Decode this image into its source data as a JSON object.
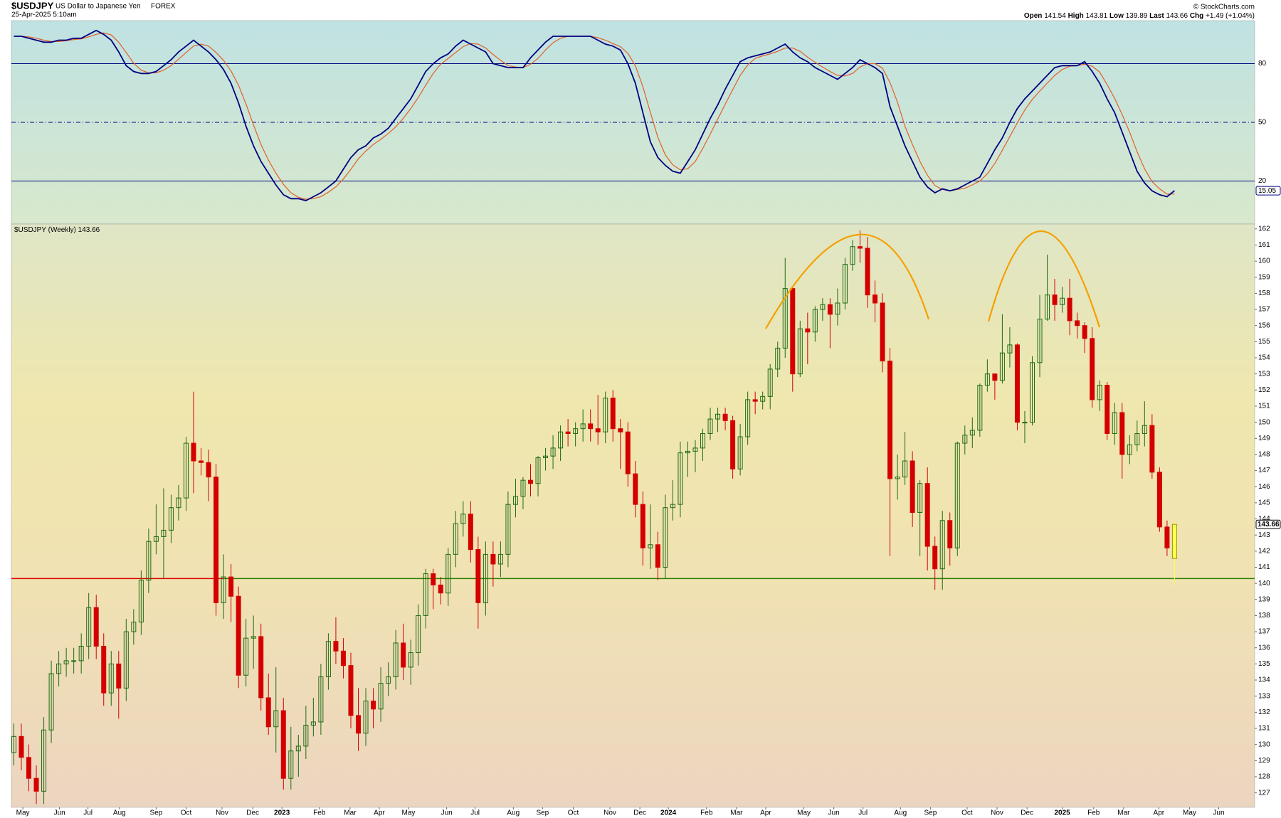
{
  "header": {
    "symbol": "$USDJPY",
    "name": "US Dollar to Japanese Yen",
    "exchange": "FOREX",
    "date": "25-Apr-2025 5:10am",
    "open_label": "Open",
    "high_label": "High",
    "low_label": "Low",
    "last_label": "Last",
    "chg_label": "Chg",
    "chg": "+1.49 (+1.04%)",
    "copyright": "© StockCharts.com"
  },
  "chart_data": [
    {
      "type": "line",
      "ylim": [
        -2,
        102
      ],
      "yticks": [
        20,
        50,
        80
      ],
      "xlim": [
        -0.33,
        165.7
      ],
      "series": [
        {
          "color": "#000080",
          "values": [
            94,
            94,
            93,
            92,
            91,
            91,
            92,
            92,
            93,
            93,
            95,
            97,
            95,
            92,
            86,
            79,
            76,
            75,
            75,
            76,
            79,
            82,
            86,
            89,
            92,
            89,
            86,
            82,
            77,
            70,
            60,
            48,
            38,
            30,
            24,
            18,
            13,
            11,
            11,
            10,
            12,
            14,
            17,
            20,
            26,
            32,
            36,
            38,
            42,
            44,
            47,
            52,
            57,
            62,
            69,
            76,
            80,
            83,
            85,
            89,
            92,
            90,
            88,
            86,
            80,
            79,
            78,
            78,
            78,
            83,
            87,
            91,
            94,
            94,
            94,
            94,
            94,
            94,
            92,
            90,
            89,
            87,
            80,
            70,
            55,
            40,
            32,
            28,
            25,
            24,
            30,
            36,
            44,
            52,
            59,
            67,
            74,
            81,
            83,
            84,
            85,
            86,
            88,
            90,
            86,
            83,
            81,
            78,
            76,
            74,
            72,
            75,
            78,
            82,
            80,
            78,
            75,
            58,
            48,
            38,
            30,
            22,
            17,
            14,
            16,
            15,
            16,
            18,
            20,
            22,
            29,
            36,
            42,
            50,
            57,
            62,
            66,
            70,
            74,
            78,
            79,
            79,
            79,
            81,
            76,
            70,
            62,
            55,
            45,
            35,
            25,
            19,
            15,
            13,
            12,
            15.05
          ]
        },
        {
          "color": "#e0602a",
          "values": [
            94,
            94,
            93.7,
            93,
            92,
            91.3,
            91.3,
            91.7,
            92.3,
            92.7,
            93.7,
            95,
            95.7,
            94.7,
            91,
            85.7,
            80.3,
            76.7,
            75.3,
            75.3,
            76.7,
            79,
            82.3,
            85.7,
            89,
            90,
            89,
            85.7,
            81.7,
            76.3,
            69,
            59.3,
            48.7,
            38.7,
            30.7,
            24,
            18.3,
            14,
            11.7,
            10.7,
            11,
            12,
            14.3,
            17,
            21,
            26,
            31.3,
            35.3,
            38.7,
            41.3,
            44.3,
            47.7,
            52,
            57,
            62.7,
            69,
            75,
            79.7,
            82.7,
            85.7,
            88.7,
            90.3,
            90,
            88,
            84.7,
            81.7,
            79,
            78.3,
            78,
            79.7,
            82.7,
            87,
            90.7,
            93,
            94,
            94,
            94,
            94,
            93.3,
            92,
            90.3,
            88.7,
            85.3,
            79,
            68.3,
            55,
            42.3,
            33.3,
            28.3,
            25.7,
            26.3,
            30,
            36.7,
            44,
            51.7,
            59.3,
            66.7,
            74,
            79.3,
            82.7,
            84,
            85,
            86.3,
            88,
            88,
            86.3,
            83.3,
            80.7,
            78.3,
            76,
            74,
            73.7,
            75,
            78.3,
            80,
            80,
            77.7,
            70.3,
            60.3,
            48,
            38.7,
            30,
            23,
            17.7,
            15.7,
            15,
            15.7,
            16.3,
            18,
            20,
            23.7,
            29,
            35.7,
            42.7,
            49.7,
            56.3,
            61.7,
            66,
            70,
            74,
            77,
            78.7,
            79,
            79.7,
            78.7,
            75.7,
            69.3,
            62.3,
            54,
            45,
            35,
            26.3,
            19.7,
            16,
            13.3,
            13.35
          ]
        }
      ]
    },
    {
      "type": "candlestick",
      "label": "$USDJPY (Weekly)",
      "ylim": [
        126.1,
        162.3
      ],
      "xlim": [
        -0.33,
        165.7
      ],
      "yticks": [
        127,
        128,
        129,
        130,
        131,
        132,
        133,
        134,
        135,
        136,
        137,
        138,
        139,
        140,
        141,
        142,
        143,
        144,
        145,
        146,
        147,
        148,
        149,
        150,
        151,
        152,
        153,
        154,
        155,
        156,
        157,
        158,
        159,
        160,
        161,
        162
      ],
      "xticks": [
        {
          "value": 1.2,
          "label": "May"
        },
        {
          "value": 6.1,
          "label": "Jun"
        },
        {
          "value": 9.9,
          "label": "Jul"
        },
        {
          "value": 14.1,
          "label": "Aug"
        },
        {
          "value": 19.0,
          "label": "Sep"
        },
        {
          "value": 23.0,
          "label": "Oct"
        },
        {
          "value": 27.8,
          "label": "Nov"
        },
        {
          "value": 31.9,
          "label": "Dec"
        },
        {
          "value": 35.8,
          "label": "2023"
        },
        {
          "value": 40.8,
          "label": "Feb"
        },
        {
          "value": 44.9,
          "label": "Mar"
        },
        {
          "value": 48.8,
          "label": "Apr"
        },
        {
          "value": 52.7,
          "label": "May"
        },
        {
          "value": 57.8,
          "label": "Jun"
        },
        {
          "value": 61.6,
          "label": "Jul"
        },
        {
          "value": 66.7,
          "label": "Aug"
        },
        {
          "value": 70.6,
          "label": "Sep"
        },
        {
          "value": 74.7,
          "label": "Oct"
        },
        {
          "value": 79.6,
          "label": "Nov"
        },
        {
          "value": 83.6,
          "label": "Dec"
        },
        {
          "value": 87.4,
          "label": "2024"
        },
        {
          "value": 92.5,
          "label": "Feb"
        },
        {
          "value": 96.5,
          "label": "Mar"
        },
        {
          "value": 100.4,
          "label": "Apr"
        },
        {
          "value": 105.5,
          "label": "May"
        },
        {
          "value": 109.5,
          "label": "Jun"
        },
        {
          "value": 113.4,
          "label": "Jul"
        },
        {
          "value": 118.4,
          "label": "Aug"
        },
        {
          "value": 122.4,
          "label": "Sep"
        },
        {
          "value": 127.3,
          "label": "Oct"
        },
        {
          "value": 131.3,
          "label": "Nov"
        },
        {
          "value": 135.3,
          "label": "Dec"
        },
        {
          "value": 140.0,
          "label": "2025"
        },
        {
          "value": 144.2,
          "label": "Feb"
        },
        {
          "value": 148.2,
          "label": "Mar"
        },
        {
          "value": 152.9,
          "label": "Apr"
        },
        {
          "value": 157.0,
          "label": "May"
        },
        {
          "value": 160.9,
          "label": "Jun"
        }
      ],
      "up_color": "#1f6b12",
      "down_color": "#d40000",
      "last_color": "#ffff55",
      "level": 140.3,
      "level_colors": [
        "#dd0000",
        "#2a8000"
      ],
      "open": [
        129.5,
        130.5,
        129.2,
        127.9,
        127.1,
        130.9,
        134.4,
        135.0,
        135.2,
        135.2,
        136.1,
        138.5,
        136.1,
        133.2,
        135.0,
        133.5,
        137.0,
        137.6,
        140.2,
        142.6,
        142.9,
        143.3,
        144.7,
        145.3,
        148.7,
        147.6,
        147.5,
        146.6,
        138.8,
        140.4,
        139.2,
        134.3,
        136.6,
        136.7,
        132.9,
        131.1,
        132.1,
        127.9,
        129.6,
        129.9,
        131.2,
        131.4,
        134.2,
        136.4,
        135.8,
        134.9,
        131.8,
        130.7,
        132.7,
        132.2,
        133.8,
        134.2,
        136.3,
        134.8,
        135.7,
        138.0,
        140.6,
        139.9,
        139.4,
        141.8,
        143.7,
        144.3,
        142.1,
        138.8,
        141.8,
        141.2,
        141.8,
        144.9,
        145.4,
        146.4,
        146.2,
        147.8,
        147.9,
        148.4,
        149.4,
        149.3,
        149.6,
        149.9,
        149.6,
        149.4,
        151.5,
        149.6,
        149.4,
        146.8,
        144.9,
        142.2,
        142.4,
        141.0,
        144.7,
        144.9,
        148.1,
        148.2,
        148.4,
        149.3,
        150.2,
        150.5,
        150.1,
        147.1,
        149.1,
        151.4,
        151.3,
        151.6,
        153.3,
        154.6,
        158.3,
        153.0,
        155.8,
        155.6,
        157.0,
        157.3,
        156.7,
        157.4,
        159.8,
        160.9,
        160.8,
        157.9,
        157.4,
        153.8,
        146.5,
        146.6,
        147.6,
        144.4,
        146.2,
        142.3,
        140.9,
        143.9,
        142.2,
        148.7,
        149.2,
        149.5,
        152.3,
        153.0,
        152.6,
        154.3,
        154.8,
        150.0,
        150.0,
        153.7,
        156.4,
        157.9,
        157.3,
        157.7,
        156.3,
        156.0,
        155.2,
        151.4,
        152.3,
        149.3,
        150.6,
        148.0,
        148.6,
        149.3,
        149.8,
        146.9,
        143.5,
        141.54
      ],
      "high": [
        131.3,
        131.3,
        130.0,
        128.7,
        131.7,
        135.2,
        135.8,
        136.0,
        136.0,
        136.9,
        139.4,
        139.3,
        136.9,
        135.8,
        135.8,
        137.8,
        138.4,
        140.8,
        143.4,
        144.9,
        145.9,
        145.5,
        146.1,
        149.1,
        151.9,
        148.4,
        148.3,
        147.4,
        141.8,
        141.2,
        139.8,
        137.8,
        138.0,
        137.5,
        134.4,
        134.8,
        132.9,
        131.1,
        130.6,
        132.4,
        132.9,
        135.0,
        136.9,
        137.9,
        136.6,
        135.7,
        133.5,
        133.5,
        133.5,
        134.8,
        135.1,
        137.1,
        137.5,
        136.5,
        138.7,
        140.9,
        140.9,
        140.4,
        142.2,
        144.5,
        145.1,
        145.1,
        142.9,
        142.6,
        142.6,
        142.6,
        145.7,
        146.5,
        146.6,
        147.4,
        147.9,
        148.4,
        149.2,
        149.8,
        150.2,
        150.0,
        150.8,
        150.8,
        151.7,
        151.9,
        152.0,
        150.2,
        150.0,
        147.6,
        145.7,
        144.9,
        143.2,
        145.5,
        146.4,
        148.8,
        148.8,
        148.9,
        149.6,
        150.9,
        150.9,
        150.9,
        150.4,
        149.9,
        151.9,
        151.9,
        151.9,
        153.6,
        155.0,
        160.2,
        158.4,
        156.3,
        156.8,
        157.2,
        157.7,
        157.7,
        158.3,
        160.2,
        161.3,
        161.9,
        161.5,
        158.8,
        158.0,
        154.6,
        148.0,
        149.4,
        148.2,
        146.4,
        147.2,
        142.9,
        144.5,
        144.4,
        148.8,
        149.8,
        150.3,
        152.4,
        153.9,
        153.0,
        156.7,
        155.9,
        154.9,
        150.7,
        154.1,
        157.9,
        160.4,
        158.9,
        158.4,
        158.9,
        156.8,
        156.2,
        155.9,
        152.6,
        152.5,
        151.2,
        151.2,
        149.2,
        150.1,
        151.3,
        150.5,
        147.2,
        143.9,
        143.81
      ],
      "low": [
        128.7,
        128.4,
        127.1,
        126.3,
        126.3,
        130.1,
        133.6,
        134.2,
        134.4,
        134.4,
        135.3,
        135.3,
        132.4,
        132.4,
        131.6,
        132.7,
        136.2,
        136.8,
        139.4,
        141.8,
        140.3,
        142.5,
        143.9,
        144.5,
        145.6,
        146.7,
        145.1,
        138.0,
        137.8,
        137.6,
        133.5,
        133.6,
        134.7,
        132.1,
        130.6,
        129.5,
        127.2,
        127.2,
        128.0,
        129.1,
        130.5,
        130.6,
        133.4,
        135.0,
        134.1,
        131.0,
        129.6,
        129.9,
        131.0,
        131.4,
        133.0,
        133.4,
        134.0,
        133.7,
        134.9,
        137.2,
        138.4,
        138.7,
        138.6,
        141.0,
        142.9,
        141.3,
        137.2,
        138.0,
        139.8,
        140.4,
        141.0,
        144.1,
        144.6,
        145.4,
        145.4,
        147.0,
        147.1,
        147.6,
        148.5,
        148.5,
        148.8,
        148.8,
        148.6,
        148.7,
        148.8,
        147.1,
        146.0,
        144.1,
        141.1,
        140.9,
        140.2,
        140.3,
        143.9,
        144.1,
        146.6,
        146.9,
        147.6,
        148.9,
        149.4,
        149.5,
        146.5,
        146.7,
        148.6,
        150.5,
        150.8,
        150.8,
        152.8,
        154.0,
        151.9,
        152.8,
        153.6,
        155.0,
        156.3,
        154.6,
        156.0,
        157.0,
        159.4,
        159.9,
        157.1,
        156.2,
        153.1,
        141.7,
        145.2,
        146.1,
        143.5,
        141.7,
        140.8,
        139.6,
        139.6,
        141.1,
        141.7,
        148.0,
        148.4,
        149.1,
        151.9,
        151.4,
        152.4,
        153.4,
        149.5,
        148.7,
        149.8,
        152.8,
        156.3,
        156.3,
        156.8,
        155.4,
        155.2,
        154.3,
        150.9,
        150.7,
        148.9,
        148.6,
        146.5,
        147.4,
        148.2,
        148.5,
        146.5,
        143.2,
        141.7,
        139.89
      ],
      "close": [
        130.5,
        129.2,
        127.9,
        127.1,
        130.9,
        134.4,
        135.0,
        135.2,
        135.2,
        136.1,
        138.5,
        136.1,
        133.2,
        135.0,
        133.5,
        137.0,
        137.6,
        140.2,
        142.6,
        142.9,
        143.3,
        144.7,
        145.3,
        148.7,
        147.6,
        147.5,
        146.6,
        138.8,
        140.4,
        139.2,
        134.3,
        136.6,
        136.7,
        132.9,
        131.1,
        132.1,
        127.9,
        129.6,
        129.9,
        131.2,
        131.4,
        134.2,
        136.4,
        135.8,
        134.9,
        131.8,
        130.7,
        132.7,
        132.2,
        133.8,
        134.2,
        136.3,
        134.8,
        135.7,
        138.0,
        140.6,
        139.9,
        139.4,
        141.8,
        143.7,
        144.3,
        142.1,
        138.8,
        141.8,
        141.2,
        141.8,
        144.9,
        145.4,
        146.4,
        146.2,
        147.8,
        147.9,
        148.4,
        149.4,
        149.3,
        149.6,
        149.9,
        149.6,
        149.4,
        151.5,
        149.6,
        149.4,
        146.8,
        144.9,
        142.2,
        142.4,
        141.0,
        144.7,
        144.9,
        148.1,
        148.2,
        148.4,
        149.3,
        150.2,
        150.5,
        150.1,
        147.1,
        149.1,
        151.4,
        151.3,
        151.6,
        153.3,
        154.6,
        158.3,
        153.0,
        155.8,
        155.6,
        157.0,
        157.3,
        156.7,
        157.4,
        159.8,
        160.9,
        160.8,
        157.9,
        157.4,
        153.8,
        146.5,
        146.6,
        147.6,
        144.4,
        146.2,
        142.3,
        140.9,
        143.9,
        142.2,
        148.7,
        149.2,
        149.5,
        152.3,
        153.0,
        152.6,
        154.3,
        154.8,
        150.0,
        150.0,
        153.7,
        156.4,
        157.9,
        157.3,
        157.7,
        156.3,
        156.0,
        155.2,
        151.4,
        152.3,
        149.3,
        150.6,
        148.0,
        148.6,
        149.3,
        149.8,
        146.9,
        143.5,
        142.2,
        143.66
      ]
    }
  ]
}
